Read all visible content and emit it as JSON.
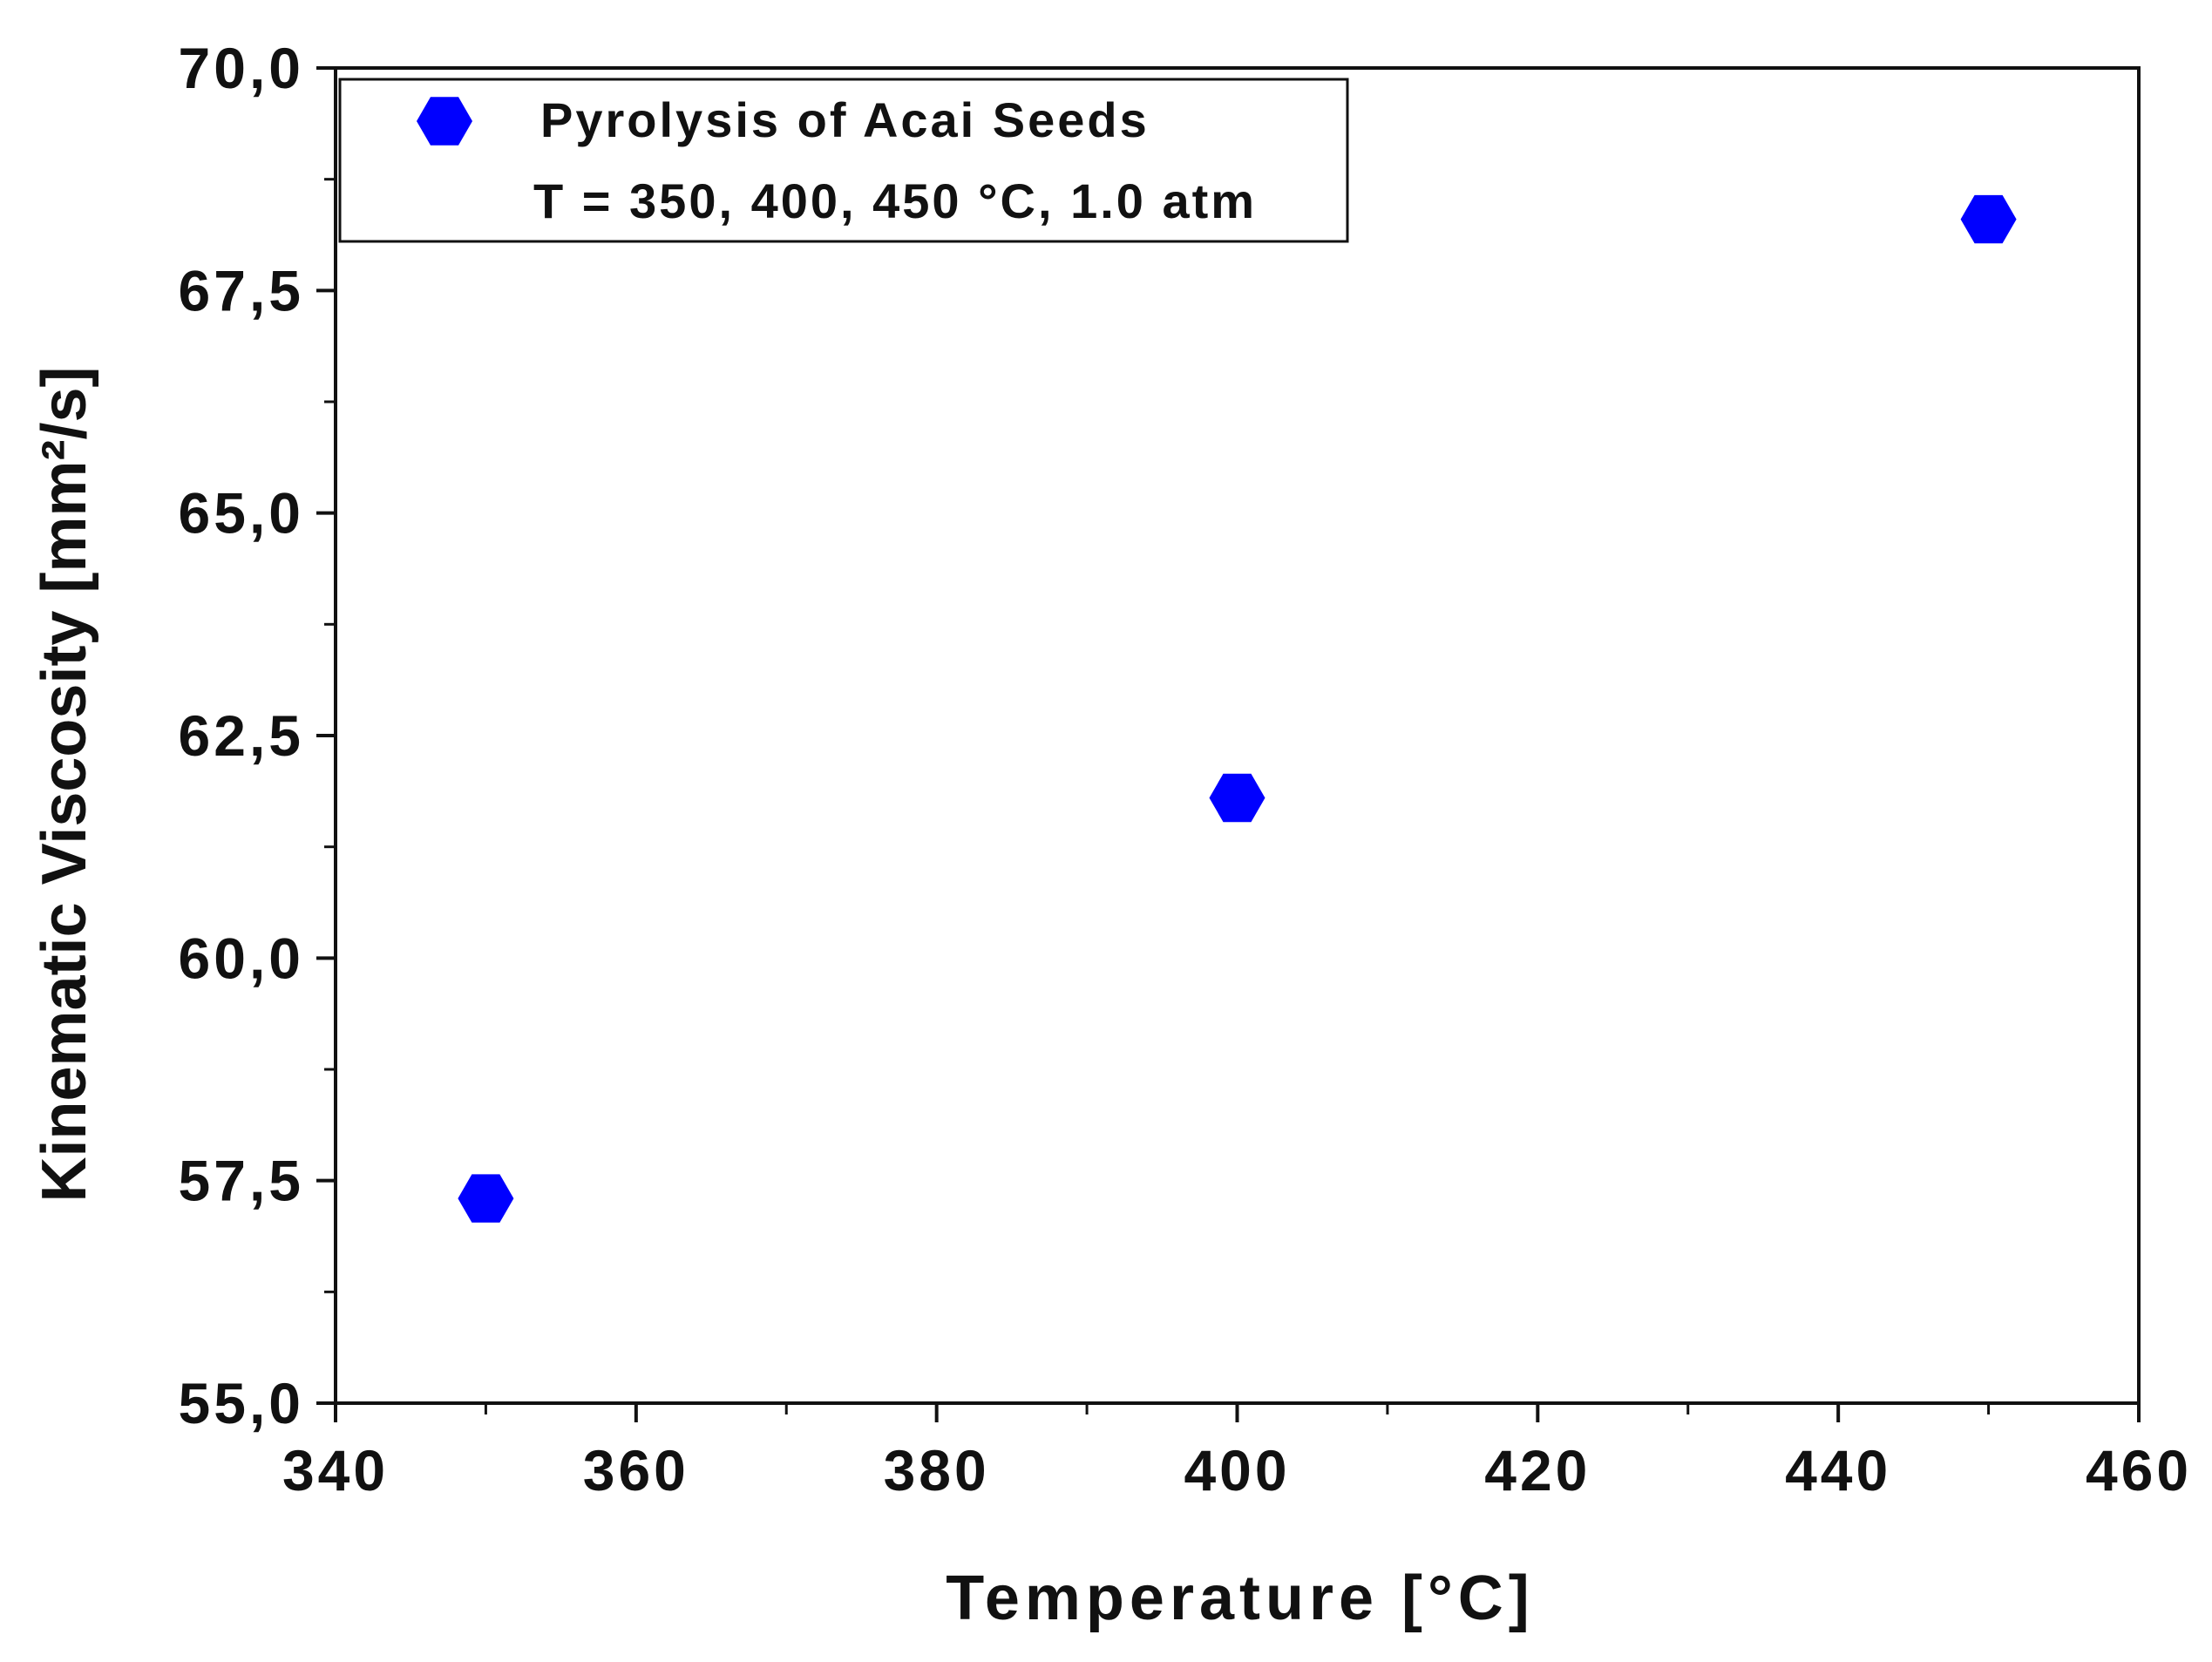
{
  "chart_data": {
    "type": "scatter",
    "title": "",
    "xlabel": "Temperature [°C]",
    "ylabel": "Kinematic Viscosity [mm²/s]",
    "xlim": [
      340,
      460
    ],
    "ylim": [
      55,
      70
    ],
    "x_ticks": [
      "340",
      "360",
      "380",
      "400",
      "420",
      "440",
      "460"
    ],
    "x_tick_values": [
      340,
      360,
      380,
      400,
      420,
      440,
      460
    ],
    "y_ticks": [
      "55,0",
      "57,5",
      "60,0",
      "62,5",
      "65,0",
      "67,5",
      "70,0"
    ],
    "y_tick_values": [
      55,
      57.5,
      60,
      62.5,
      65,
      67.5,
      70
    ],
    "grid": false,
    "legend_position": "top-left",
    "series": [
      {
        "name": "Pyrolysis of Acai Seeds",
        "marker": "hexagon",
        "color": "#0000ff",
        "x": [
          350,
          400,
          450
        ],
        "y": [
          57.3,
          61.8,
          68.3
        ]
      }
    ],
    "legend_note": "T = 350, 400, 450 °C, 1.0 atm"
  }
}
